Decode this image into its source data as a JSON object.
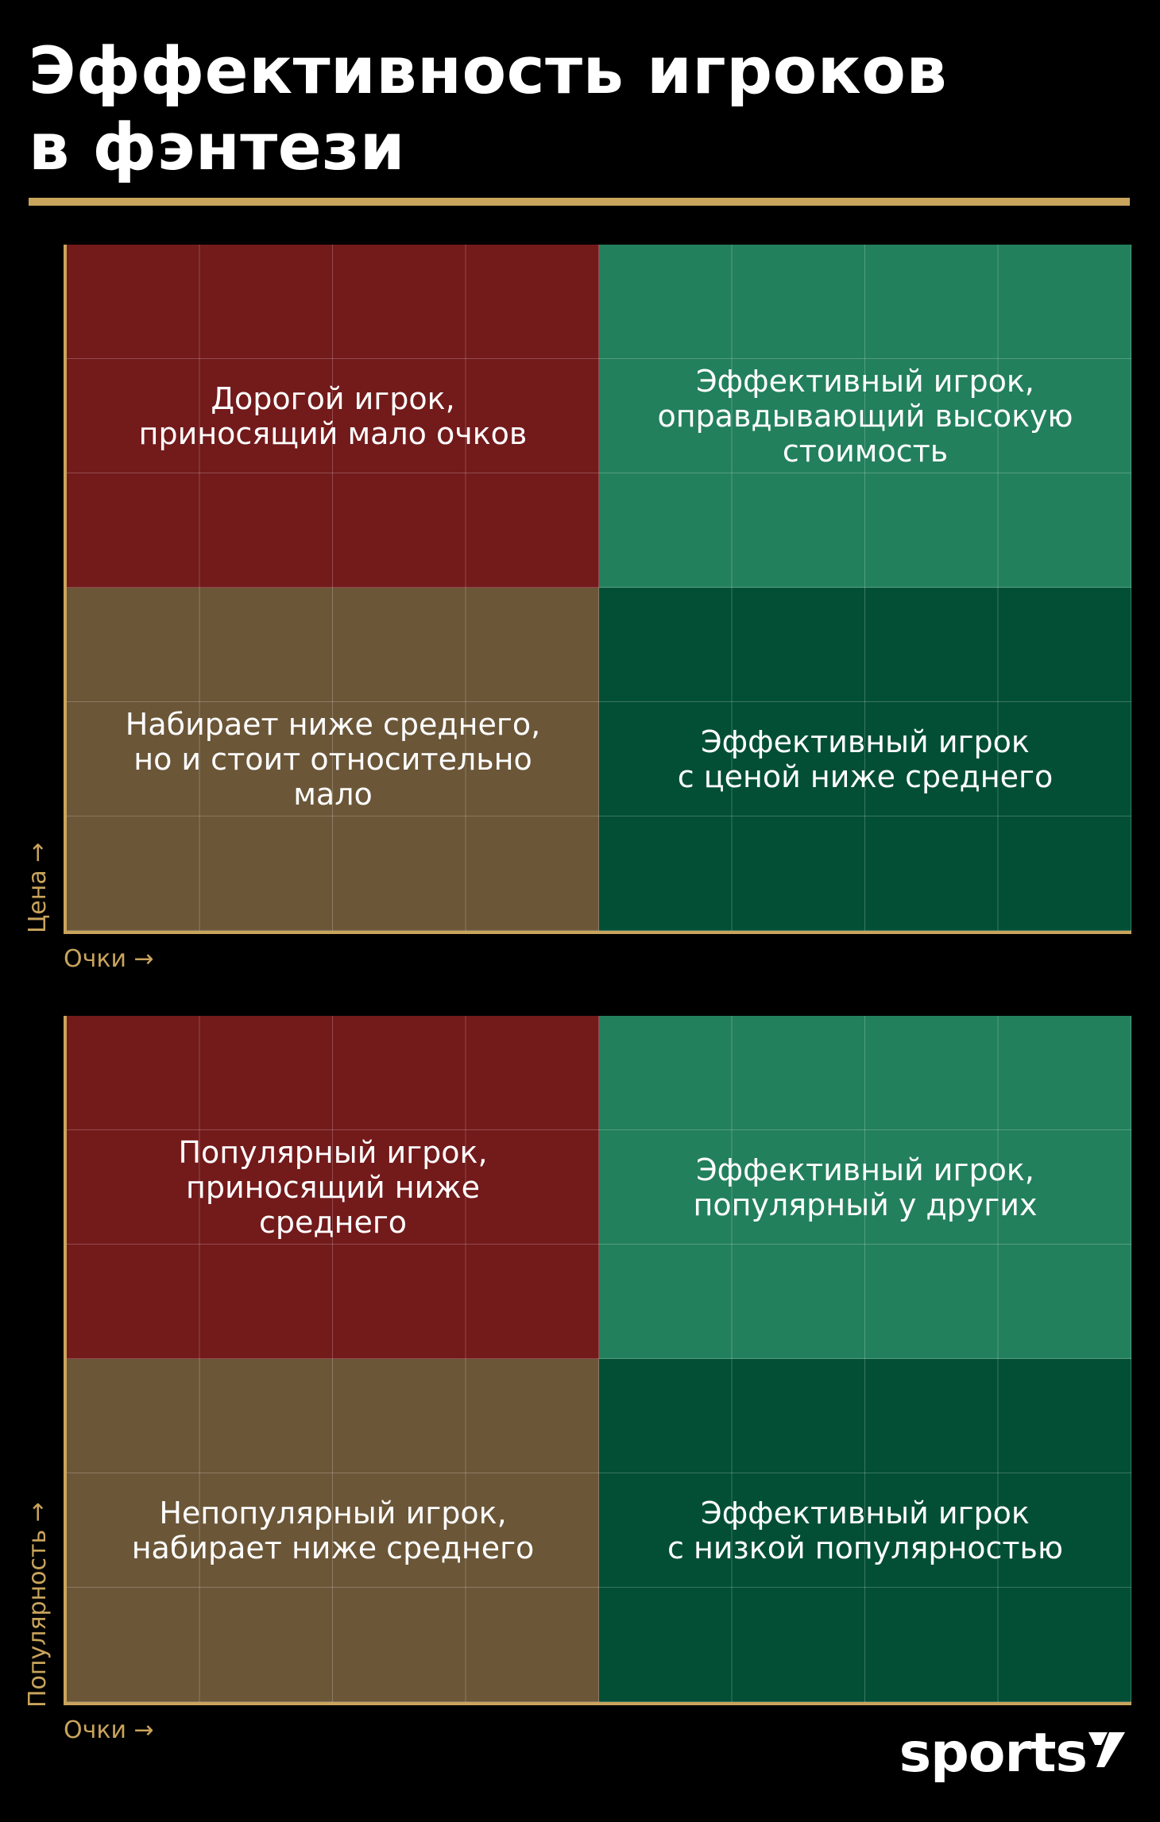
{
  "title": {
    "line1": "Эффективность игроков",
    "line2": "в фэнтези"
  },
  "matrices": [
    {
      "y_axis_label": "Цена →",
      "x_axis_label": "Очки →",
      "quadrants": {
        "top_left": "Дорогой игрок,\nприносящий мало очков",
        "top_right": "Эффективный игрок,\nоправдывающий высокую\nстоимость",
        "bottom_left": "Набирает ниже среднего,\nно и стоит относительно\nмало",
        "bottom_right": "Эффективный игрок\nс ценой ниже среднего"
      }
    },
    {
      "y_axis_label": "Популярность →",
      "x_axis_label": "Очки →",
      "quadrants": {
        "top_left": "Популярный игрок,\nприносящий ниже\nсреднего",
        "top_right": "Эффективный игрок,\nпопулярный у других",
        "bottom_left": "Непопулярный игрок,\nнабирает ниже среднего",
        "bottom_right": "Эффективный игрок\nс низкой популярностью"
      }
    }
  ],
  "logo": {
    "text": "sports",
    "mark_icon": "sports-logo-mark"
  },
  "colors": {
    "accent_gold": "#c9a45c",
    "quadrant_red": "#731a1b",
    "quadrant_green": "#23805c",
    "quadrant_brown": "#6b5638",
    "quadrant_dark_green": "#034f36",
    "background": "#000000"
  }
}
